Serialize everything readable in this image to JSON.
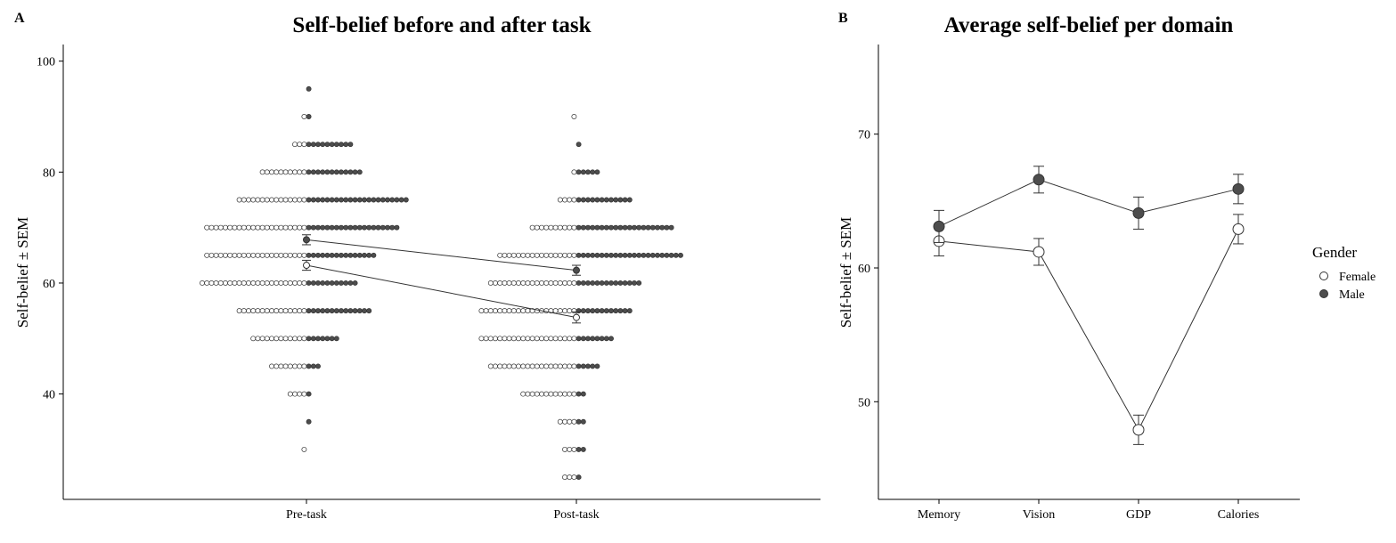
{
  "panels": {
    "a": {
      "label": "A",
      "title": "Self-belief before and after task"
    },
    "b": {
      "label": "B",
      "title": "Average self-belief per domain"
    }
  },
  "legend": {
    "title": "Gender",
    "items": [
      {
        "name": "Female",
        "fill": "#ffffff"
      },
      {
        "name": "Male",
        "fill": "#4d4d4d"
      }
    ],
    "placement": "right"
  },
  "colors": {
    "female": "#ffffff",
    "male": "#4d4d4d",
    "stroke": "#333333",
    "axis": "#000000"
  },
  "chart_data": [
    {
      "type": "scatter",
      "subtype": "dotplot-with-means",
      "xlabel": "",
      "ylabel": "Self-belief ± SEM",
      "categories": [
        "Pre-task",
        "Post-task"
      ],
      "ylim": [
        21,
        103
      ],
      "yticks": [
        40,
        60,
        80,
        100
      ],
      "grid": false,
      "dot_counts": [
        {
          "category": "Pre-task",
          "rows": [
            {
              "y": 95,
              "female": 0,
              "male": 1
            },
            {
              "y": 90,
              "female": 1,
              "male": 1
            },
            {
              "y": 85,
              "female": 3,
              "male": 10
            },
            {
              "y": 80,
              "female": 10,
              "male": 12
            },
            {
              "y": 75,
              "female": 15,
              "male": 22
            },
            {
              "y": 70,
              "female": 22,
              "male": 20
            },
            {
              "y": 65,
              "female": 22,
              "male": 15
            },
            {
              "y": 60,
              "female": 23,
              "male": 11
            },
            {
              "y": 55,
              "female": 15,
              "male": 14
            },
            {
              "y": 50,
              "female": 12,
              "male": 7
            },
            {
              "y": 45,
              "female": 8,
              "male": 3
            },
            {
              "y": 40,
              "female": 4,
              "male": 1
            },
            {
              "y": 35,
              "female": 0,
              "male": 1
            },
            {
              "y": 30,
              "female": 1,
              "male": 0
            }
          ]
        },
        {
          "category": "Post-task",
          "rows": [
            {
              "y": 90,
              "female": 1,
              "male": 0
            },
            {
              "y": 85,
              "female": 0,
              "male": 1
            },
            {
              "y": 80,
              "female": 1,
              "male": 5
            },
            {
              "y": 75,
              "female": 4,
              "male": 12
            },
            {
              "y": 70,
              "female": 10,
              "male": 21
            },
            {
              "y": 65,
              "female": 17,
              "male": 23
            },
            {
              "y": 60,
              "female": 19,
              "male": 14
            },
            {
              "y": 55,
              "female": 21,
              "male": 12
            },
            {
              "y": 50,
              "female": 21,
              "male": 8
            },
            {
              "y": 45,
              "female": 19,
              "male": 5
            },
            {
              "y": 40,
              "female": 12,
              "male": 2
            },
            {
              "y": 35,
              "female": 4,
              "male": 2
            },
            {
              "y": 30,
              "female": 3,
              "male": 2
            },
            {
              "y": 25,
              "female": 3,
              "male": 1
            }
          ]
        }
      ],
      "series": [
        {
          "name": "Female",
          "values": [
            63.2,
            53.8
          ],
          "sem": [
            0.9,
            1.0
          ]
        },
        {
          "name": "Male",
          "values": [
            67.8,
            62.3
          ],
          "sem": [
            0.9,
            0.9
          ]
        }
      ]
    },
    {
      "type": "line",
      "xlabel": "",
      "ylabel": "Self-belief ± SEM",
      "categories": [
        "Memory",
        "Vision",
        "GDP",
        "Calories"
      ],
      "ylim": [
        42.7,
        76.7
      ],
      "yticks": [
        50,
        60,
        70
      ],
      "grid": false,
      "series": [
        {
          "name": "Female",
          "values": [
            62.0,
            61.2,
            47.9,
            62.9
          ],
          "sem": [
            1.1,
            1.0,
            1.1,
            1.1
          ]
        },
        {
          "name": "Male",
          "values": [
            63.1,
            66.6,
            64.1,
            65.9
          ],
          "sem": [
            1.2,
            1.0,
            1.2,
            1.1
          ]
        }
      ]
    }
  ]
}
